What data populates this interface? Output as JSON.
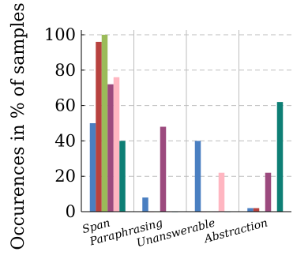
{
  "chart_data": {
    "type": "bar",
    "title": "",
    "xlabel": "",
    "ylabel": "Occurences in % of samples",
    "ylim": [
      0,
      100
    ],
    "yticks": [
      0,
      20,
      40,
      60,
      80,
      100
    ],
    "ytick_labels": [
      "0",
      "20",
      "40",
      "60",
      "80",
      "100"
    ],
    "grid": "horizontal dashed",
    "categories": [
      "Span",
      "Paraphrasing",
      "Unanswerable",
      "Abstraction"
    ],
    "series": [
      {
        "color": "#4a7fc1",
        "values": [
          50,
          8,
          40,
          2
        ]
      },
      {
        "color": "#b8423f",
        "values": [
          96,
          0,
          0,
          2
        ]
      },
      {
        "color": "#9bbb59",
        "values": [
          100,
          0,
          0,
          0
        ]
      },
      {
        "color": "#9c4a7e",
        "values": [
          72,
          48,
          0,
          22
        ]
      },
      {
        "color": "#ffb6c1",
        "values": [
          76,
          0,
          22,
          0
        ]
      },
      {
        "color": "#0e7f75",
        "values": [
          40,
          0,
          0,
          62
        ]
      }
    ]
  }
}
